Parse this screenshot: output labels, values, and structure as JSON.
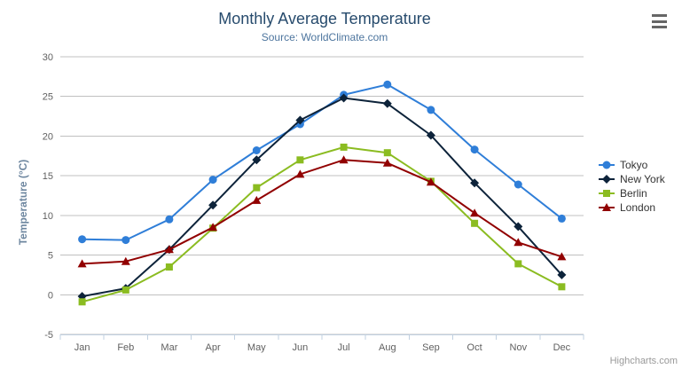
{
  "chart_data": {
    "type": "line",
    "title": "Monthly Average Temperature",
    "subtitle": "Source: WorldClimate.com",
    "credits": "Highcharts.com",
    "categories": [
      "Jan",
      "Feb",
      "Mar",
      "Apr",
      "May",
      "Jun",
      "Jul",
      "Aug",
      "Sep",
      "Oct",
      "Nov",
      "Dec"
    ],
    "xlabel": "",
    "ylabel": "Temperature (°C)",
    "ylim": [
      -5,
      30
    ],
    "yticks": [
      -5,
      0,
      5,
      10,
      15,
      20,
      25,
      30
    ],
    "grid": true,
    "legend_position": "right",
    "series": [
      {
        "name": "Tokyo",
        "color": "#2f7ed8",
        "marker": "circle",
        "values": [
          7.0,
          6.9,
          9.5,
          14.5,
          18.2,
          21.5,
          25.2,
          26.5,
          23.3,
          18.3,
          13.9,
          9.6
        ]
      },
      {
        "name": "New York",
        "color": "#0d233a",
        "marker": "diamond",
        "values": [
          -0.2,
          0.8,
          5.7,
          11.3,
          17.0,
          22.0,
          24.8,
          24.1,
          20.1,
          14.1,
          8.6,
          2.5
        ]
      },
      {
        "name": "Berlin",
        "color": "#8bbc21",
        "marker": "square",
        "values": [
          -0.9,
          0.6,
          3.5,
          8.4,
          13.5,
          17.0,
          18.6,
          17.9,
          14.3,
          9.0,
          3.9,
          1.0
        ]
      },
      {
        "name": "London",
        "color": "#910000",
        "marker": "triangle",
        "values": [
          3.9,
          4.2,
          5.7,
          8.5,
          11.9,
          15.2,
          17.0,
          16.6,
          14.2,
          10.3,
          6.6,
          4.8
        ]
      }
    ]
  },
  "colors": {
    "title": "#274b6d",
    "subtitle": "#4d759e",
    "axis_labels": "#606060",
    "axis_title": "#6d869f",
    "gridline": "#c0c0c0",
    "axis_line": "#c0d0e0",
    "legend_text": "#333333",
    "credits": "#999999",
    "menu_icon": "#666666"
  },
  "icons": {
    "context_menu": "hamburger-menu-icon"
  }
}
